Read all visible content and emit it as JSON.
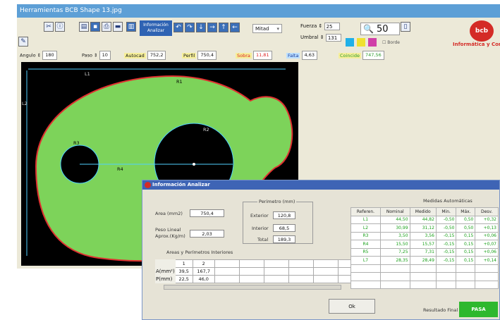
{
  "window": {
    "title": "Herramientas BCB Shape    13.jpg"
  },
  "toolbar": {
    "info_label": "Información Analizar",
    "mode_combo": "Mitad",
    "fuerza_label": "Fuerza",
    "fuerza_value": "25",
    "umbral_label": "Umbral",
    "umbral_value": "131",
    "zoom_value": "50",
    "borde_label": "Borde"
  },
  "logo": {
    "text": "bcb",
    "company": "Informática y Con"
  },
  "measures": {
    "angulo_label": "Angulo",
    "angulo_value": "180",
    "paso_label": "Paso",
    "paso_value": "10",
    "autocad_label": "Autocad",
    "autocad_value": "752,2",
    "perfil_label": "Perfil",
    "perfil_value": "750,4",
    "sobra_label": "Sobra",
    "sobra_value": "11,81",
    "falta_label": "Falta",
    "falta_value": "4,63",
    "coincide_label": "Coincide",
    "coincide_value": "747,56"
  },
  "canvas": {
    "labels": {
      "l1": "L1",
      "l2": "L2",
      "r1": "R1",
      "r2": "R2",
      "r3": "R3",
      "r4": "R4",
      "r5": "R5"
    }
  },
  "dialog": {
    "title": "Información Analizar",
    "area_label": "Area (mm2)",
    "area_value": "750,4",
    "peso_label_1": "Peso Lineal",
    "peso_label_2": "Aprox.(Kg/m)",
    "peso_value": "2,03",
    "perimetro_title": "Perimetro (mm)",
    "exterior_label": "Exterior",
    "exterior_value": "120,8",
    "interior_label": "Interior",
    "interior_value": "68,5",
    "total_label": "Total",
    "total_value": "189,3",
    "areas_title": "Areas y Perímetros Interiores",
    "inner_cols": [
      "1",
      "2"
    ],
    "area_row_label": "A(mm²)",
    "area_row": [
      "39,5",
      "167,7"
    ],
    "perim_row_label": "P(mm)",
    "perim_row": [
      "22,5",
      "46,0"
    ],
    "med_title": "Medidas Automáticas",
    "med_headers": [
      "Referen.",
      "Nominal",
      "Medido",
      "Min.",
      "Máx.",
      "Desv."
    ],
    "med_rows": [
      [
        "L1",
        "44,50",
        "44,82",
        "-0,50",
        "0,50",
        "+0,32"
      ],
      [
        "L2",
        "30,99",
        "31,12",
        "-0,50",
        "0,50",
        "+0,13"
      ],
      [
        "R3",
        "3,50",
        "3,56",
        "-0,15",
        "0,15",
        "+0,06"
      ],
      [
        "R4",
        "15,50",
        "15,57",
        "-0,15",
        "0,15",
        "+0,07"
      ],
      [
        "R5",
        "7,25",
        "7,31",
        "-0,15",
        "0,15",
        "+0,06"
      ],
      [
        "L7",
        "28,35",
        "28,49",
        "-0,15",
        "0,15",
        "+0,14"
      ]
    ],
    "ok_label": "Ok",
    "result_label": "Resultado Final",
    "result_value": "PASA"
  },
  "colors": {
    "shape_fill": "#7dd35a",
    "titlebar": "#5d9fd6",
    "pass": "#2eb82e",
    "logo": "#d42b26"
  }
}
